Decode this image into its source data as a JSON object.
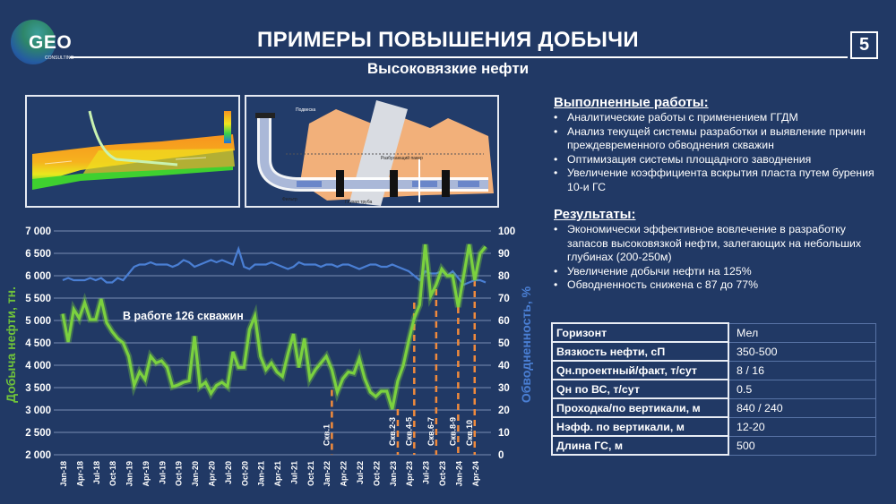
{
  "header": {
    "logo_text": "GEO",
    "logo_sub": "CONSULTING",
    "title": "ПРИМЕРЫ ПОВЫШЕНИЯ ДОБЫЧИ",
    "page_number": "5",
    "subtitle": "Высоковязкие нефти"
  },
  "images": {
    "model_label": "3D-модель пласта с горизонтальной скважиной",
    "scheme_labels": {
      "oil": "нефть",
      "clay": "глина",
      "packer": "Разбухающий пакер",
      "filter": "Фильтр",
      "blank_pipe": "Глухая труба",
      "top": "Подвеска",
      "blank_pipe2": "Глухая труба"
    }
  },
  "works": {
    "title": "Выполненные работы:",
    "items": [
      "Аналитические работы с применением ГГДМ",
      "Анализ текущей системы разработки и выявление причин преждевременного обводнения скважин",
      "Оптимизация системы площадного заводнения",
      "Увеличение коэффициента вскрытия пласта путем бурения 10-и ГС"
    ]
  },
  "results": {
    "title": "Результаты:",
    "items": [
      "Экономически эффективное вовлечение в разработку запасов высоковязкой нефти, залегающих на небольших глубинах (200-250м)",
      "Увеличение добычи нефти на 125%",
      "Обводненность снижена с 87 до 77%"
    ]
  },
  "params_table": [
    {
      "key": "Горизонт",
      "value": "Мел"
    },
    {
      "key": "Вязкость нефти, сП",
      "value": "350-500"
    },
    {
      "key": "Qн.проектный/факт, т/сут",
      "value": "8 / 16"
    },
    {
      "key": "Qн по ВС, т/сут",
      "value": "0.5"
    },
    {
      "key": "Проходка/по вертикали, м",
      "value": "840 / 240"
    },
    {
      "key": "Нэфф. по вертикали, м",
      "value": "12-20"
    },
    {
      "key": "Длина ГС, м",
      "value": "500"
    }
  ],
  "colors": {
    "background": "#213965",
    "oil_line": "#7bd13f",
    "water_cut_line": "#4a7fd4",
    "well_marker": "#f08a3c",
    "grid": "#8fa3c8"
  },
  "chart_data": {
    "type": "line",
    "title": "",
    "annotation": "В работе 126 скважин",
    "ylabel": "Добыча нефти, тн.",
    "ylabel_right": "Обводненность, %",
    "ylim": [
      2000,
      7000
    ],
    "ylim_right": [
      0,
      100
    ],
    "yticks": [
      "7 000",
      "6 500",
      "6 000",
      "5 500",
      "5 000",
      "4 500",
      "4 000",
      "3 500",
      "3 000",
      "2 500",
      "2 000"
    ],
    "yticks_right": [
      "100",
      "90",
      "80",
      "70",
      "60",
      "50",
      "40",
      "30",
      "20",
      "10",
      "0"
    ],
    "xtick_labels": [
      "Jan-18",
      "Apr-18",
      "Jul-18",
      "Oct-18",
      "Jan-19",
      "Apr-19",
      "Jul-19",
      "Oct-19",
      "Jan-20",
      "Apr-20",
      "Jul-20",
      "Oct-20",
      "Jan-21",
      "Apr-21",
      "Jul-21",
      "Oct-21",
      "Jan-22",
      "Apr-22",
      "Jul-22",
      "Oct-22",
      "Jan-23",
      "Apr-23",
      "Jul-23",
      "Oct-23",
      "Jan-24",
      "Apr-24"
    ],
    "x_start": "Jan-18",
    "x_step": "month",
    "grid": true,
    "series": [
      {
        "name": "Добыча нефти, тн.",
        "axis": "left",
        "values": [
          5150,
          4520,
          5250,
          5050,
          5400,
          5020,
          5020,
          5480,
          4950,
          4750,
          4600,
          4500,
          4200,
          3550,
          3850,
          3680,
          4200,
          4050,
          4100,
          3950,
          3520,
          3560,
          3620,
          3650,
          4650,
          3520,
          3620,
          3370,
          3550,
          3620,
          3520,
          4300,
          3950,
          3950,
          4800,
          5100,
          4200,
          3900,
          4050,
          3850,
          3750,
          4250,
          4700,
          3950,
          4600,
          3700,
          3900,
          4050,
          4200,
          3900,
          3400,
          3700,
          3850,
          3820,
          4150,
          3700,
          3400,
          3300,
          3420,
          3420,
          3020,
          3650,
          4000,
          4550,
          5050,
          5350,
          6700,
          5550,
          5800,
          6150,
          6000,
          6000,
          5300,
          6000,
          6700,
          5900,
          6500,
          6650
        ]
      },
      {
        "name": "Обводненность, %",
        "axis": "right",
        "values": [
          78,
          79,
          78,
          78,
          78,
          79,
          78,
          79,
          77,
          77,
          79,
          78,
          81,
          84,
          85,
          85,
          86,
          85,
          85,
          85,
          84,
          85,
          87,
          86,
          84,
          85,
          86,
          87,
          86,
          87,
          86,
          85,
          92,
          84,
          83,
          85,
          85,
          85,
          86,
          85,
          84,
          83,
          84,
          86,
          85,
          85,
          85,
          84,
          85,
          85,
          84,
          85,
          85,
          84,
          83,
          84,
          85,
          85,
          84,
          84,
          85,
          84,
          83,
          82,
          80,
          78,
          82,
          81,
          81,
          82,
          80,
          82,
          79,
          76,
          77,
          78,
          78,
          77
        ]
      }
    ],
    "well_markers": [
      {
        "label": "Скв.1",
        "index": 49,
        "top_value": 3450
      },
      {
        "label": "Скв.2-3",
        "index": 61,
        "top_value": 3020
      },
      {
        "label": "Скв.4-5",
        "index": 64,
        "top_value": 5400
      },
      {
        "label": "Скв.6-7",
        "index": 68,
        "top_value": 5700
      },
      {
        "label": "Скв.8-9",
        "index": 72,
        "top_value": 5300
      },
      {
        "label": "Скв.10",
        "index": 75,
        "top_value": 5900
      }
    ]
  }
}
